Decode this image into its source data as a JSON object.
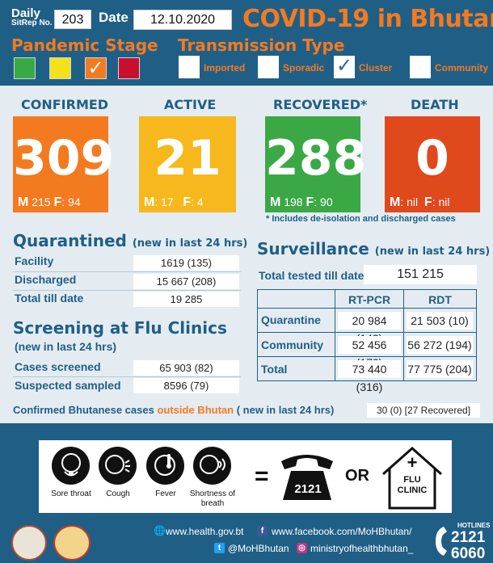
{
  "header": {
    "daily_label": "Daily",
    "sitrep_label": "SitRep No.",
    "sitrep_no": "203",
    "date_label": "Date",
    "date": "12.10.2020",
    "title": "COVID-19 in Bhutan"
  },
  "pandemic_stage": {
    "label": "Pandemic Stage",
    "stages": [
      {
        "color": "#3aa945",
        "checked": false
      },
      {
        "color": "#f3e21b",
        "checked": false
      },
      {
        "color": "#f47a20",
        "checked": true
      },
      {
        "color": "#c8102e",
        "checked": false
      }
    ]
  },
  "transmission": {
    "label": "Transmission Type",
    "types": [
      {
        "label": "Imported",
        "checked": false
      },
      {
        "label": "Sporadic",
        "checked": false
      },
      {
        "label": "Cluster",
        "checked": true
      },
      {
        "label": "Community",
        "checked": false
      }
    ]
  },
  "stats": {
    "confirmed": {
      "label": "CONFIRMED",
      "value": "309",
      "m_label": "M",
      "m": "215",
      "f_label": "F",
      "f": "94",
      "color": "#f47a20"
    },
    "active": {
      "label": "ACTIVE",
      "value": "21",
      "m_label": "M",
      "m": "17",
      "f_label": "F",
      "f": "4",
      "color": "#f6b81c"
    },
    "recovered": {
      "label": "RECOVERED*",
      "value": "288",
      "m_label": "M",
      "m": "198",
      "f_label": "F",
      "f": "90",
      "color": "#3aa945"
    },
    "death": {
      "label": "DEATH",
      "value": "0",
      "m_label": "M",
      "m": "nil",
      "f_label": "F",
      "f": "nil",
      "color": "#e0491c"
    },
    "footnote": "* Includes de-isolation and discharged cases"
  },
  "quarantined": {
    "title": "Quarantined",
    "subtitle": "(new in last 24 hrs)",
    "rows": [
      {
        "label": "Facility",
        "value": "1619 (135)"
      },
      {
        "label": "Discharged",
        "value": "15 667 (208)"
      },
      {
        "label": "Total till date",
        "value": "19 285"
      }
    ]
  },
  "screening": {
    "title": "Screening  at  Flu  Clinics",
    "subtitle": "(new in last 24 hrs)",
    "rows": [
      {
        "label": "Cases screened",
        "value": "65 903 (82)"
      },
      {
        "label": "Suspected sampled",
        "value": "8596 (79)"
      }
    ]
  },
  "surveillance": {
    "title": "Surveillance",
    "subtitle": "(new in last 24 hrs)",
    "tested_label": "Total tested till date",
    "tested_value": "151 215",
    "columns": [
      "RT-PCR",
      "RDT"
    ],
    "rows": [
      {
        "label": "Quarantine",
        "rtpcr": "20 984 (143)",
        "rdt": "21 503 (10)"
      },
      {
        "label": "Community",
        "rtpcr": "52 456 (173)",
        "rdt": "56 272 (194)"
      },
      {
        "label": "Total",
        "rtpcr": "73 440 (316)",
        "rdt": "77 775 (204)"
      }
    ]
  },
  "outside": {
    "pre": "Confirmed Bhutanese cases",
    "hi": "outside Bhutan",
    "post": "( new in last 24 hrs)",
    "value": "30 (0) [27 Recovered]"
  },
  "symptoms": {
    "items": [
      "Sore throat",
      "Cough",
      "Fever",
      "Shortness of breath"
    ],
    "equals": "=",
    "phone_number": "2121",
    "or": "OR",
    "flu_clinic_line1": "FLU",
    "flu_clinic_line2": "CLINIC",
    "flu_clinic_plus": "+"
  },
  "footer": {
    "website": "www.health.gov.bt",
    "facebook": "www.facebook.com/MoHBhutan/",
    "twitter": "@MoHBhutan",
    "instagram": "ministryofhealthbhutan_",
    "hotline_label": "HOTLINES",
    "hotline_1": "2121",
    "hotline_2": "6060"
  }
}
